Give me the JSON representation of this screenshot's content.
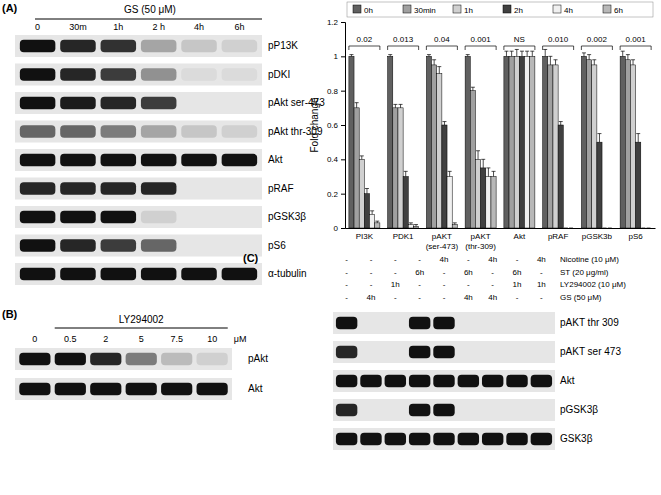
{
  "panel_a": {
    "label": "(A)",
    "treatment": "GS (50 μM)",
    "lanes": [
      "0",
      "30m",
      "1h",
      "2 h",
      "4h",
      "6h"
    ],
    "rows": [
      {
        "name": "pP13K",
        "bands": [
          1,
          0.9,
          0.85,
          0.3,
          0.15,
          0.1
        ]
      },
      {
        "name": "pDKI",
        "bands": [
          1,
          0.9,
          0.8,
          0.4,
          0.05,
          0.05
        ]
      },
      {
        "name": "pAkt ser-473",
        "bands": [
          1,
          0.95,
          0.9,
          0.8,
          0,
          0
        ]
      },
      {
        "name": "pAkt thr-309",
        "bands": [
          0.6,
          0.6,
          0.5,
          0.3,
          0.15,
          0.1
        ]
      },
      {
        "name": "Akt",
        "bands": [
          1,
          1,
          1,
          1,
          1,
          1
        ]
      },
      {
        "name": "pRAF",
        "bands": [
          0.9,
          0.9,
          0.9,
          0.9,
          0,
          0
        ]
      },
      {
        "name": "pGSK3β",
        "bands": [
          1,
          1,
          1,
          0.1,
          0,
          0
        ]
      },
      {
        "name": "pS6",
        "bands": [
          1,
          0.9,
          0.8,
          0.6,
          0,
          0
        ]
      },
      {
        "name": "α-tubulin",
        "bands": [
          1,
          1,
          1,
          1,
          1,
          1
        ]
      }
    ]
  },
  "chart_data": {
    "type": "bar",
    "y_label": "Fold change",
    "categories": [
      "PI3K",
      "PDK1",
      "pAKT (ser-473)",
      "pAKT (thr-309)",
      "Akt",
      "pRAF",
      "pGSK3b",
      "pS6"
    ],
    "series": [
      {
        "name": "0h",
        "color": "#606060",
        "values": [
          1,
          1,
          1,
          1,
          1,
          1,
          1,
          1
        ],
        "errors": [
          0.01,
          0.01,
          0.01,
          0.01,
          0.03,
          0.04,
          0.02,
          0.03
        ]
      },
      {
        "name": "30min",
        "color": "#a0a0a0",
        "values": [
          0.7,
          0.7,
          0.95,
          0.8,
          1,
          0.95,
          0.98,
          0.98
        ],
        "errors": [
          0.03,
          0.02,
          0.03,
          0.02,
          0.03,
          0.05,
          0.03,
          0.03
        ]
      },
      {
        "name": "1h",
        "color": "#d0d0d0",
        "values": [
          0.4,
          0.7,
          0.9,
          0.4,
          1,
          0.95,
          0.95,
          0.95
        ],
        "errors": [
          0.02,
          0.02,
          0.04,
          0.05,
          0.04,
          0.03,
          0.03,
          0.03
        ]
      },
      {
        "name": "2h",
        "color": "#404040",
        "values": [
          0.2,
          0.3,
          0.6,
          0.35,
          1,
          0.6,
          0.5,
          0.5
        ],
        "errors": [
          0.03,
          0.03,
          0.02,
          0.05,
          0.03,
          0.02,
          0.05,
          0.05
        ]
      },
      {
        "name": "4h",
        "color": "#f0f0f0",
        "values": [
          0.08,
          0.02,
          0.3,
          0.3,
          1,
          0,
          0,
          0
        ],
        "errors": [
          0.02,
          0.01,
          0.03,
          0.05,
          0.03,
          0,
          0,
          0
        ]
      },
      {
        "name": "6h",
        "color": "#b8b8b8",
        "values": [
          0.03,
          0.01,
          0.02,
          0.3,
          1,
          0,
          0,
          0
        ],
        "errors": [
          0.01,
          0.01,
          0.01,
          0.03,
          0.03,
          0,
          0,
          0
        ]
      }
    ],
    "annotations": [
      "0.02",
      "0.013",
      "0.04",
      "0.001",
      "NS",
      "0.010",
      "0.002",
      "0.001"
    ],
    "ylim": [
      0,
      1.2
    ],
    "yticks": [
      0,
      0.2,
      0.4,
      0.6,
      0.8,
      1,
      1.2
    ],
    "legend": "top"
  },
  "panel_b": {
    "label": "(B)",
    "treatment": "LY294002",
    "lanes": [
      "0",
      "0.5",
      "2",
      "5",
      "7.5",
      "10"
    ],
    "unit": "μM",
    "rows": [
      {
        "name": "pAkt",
        "bands": [
          1,
          1,
          0.9,
          0.5,
          0.2,
          0.1
        ]
      },
      {
        "name": "Akt",
        "bands": [
          1,
          1,
          1,
          1,
          1,
          1
        ]
      }
    ]
  },
  "panel_c": {
    "label": "(C)",
    "treatments": [
      {
        "name": "Nicotine (10 μM)",
        "lanes": [
          "-",
          "-",
          "-",
          "-",
          "4h",
          "-",
          "4h",
          "-",
          "4h"
        ]
      },
      {
        "name": "ST (20 μg/ml)",
        "lanes": [
          "-",
          "-",
          "-",
          "6h",
          "-",
          "6h",
          "-",
          "6h",
          "-"
        ]
      },
      {
        "name": "LY294002 (10 μM)",
        "lanes": [
          "-",
          "-",
          "1h",
          "-",
          "-",
          "-",
          "-",
          "1h",
          "1h"
        ]
      },
      {
        "name": "GS (50 μM)",
        "lanes": [
          "-",
          "4h",
          "-",
          "-",
          "-",
          "4h",
          "4h",
          "-",
          "-"
        ]
      }
    ],
    "rows": [
      {
        "name": "pAKT thr 309",
        "bands": [
          1,
          0,
          0,
          1,
          1,
          0,
          0,
          0,
          0
        ]
      },
      {
        "name": "pAKT ser 473",
        "bands": [
          0.9,
          0,
          0,
          1,
          1,
          0,
          0,
          0,
          0
        ]
      },
      {
        "name": "Akt",
        "bands": [
          1,
          1,
          1,
          1,
          1,
          1,
          1,
          1,
          1
        ]
      },
      {
        "name": "pGSK3β",
        "bands": [
          0.9,
          0,
          0,
          1,
          1,
          0,
          0,
          0,
          0
        ]
      },
      {
        "name": "GSK3β",
        "bands": [
          1,
          1,
          1,
          1,
          1,
          1,
          1,
          1,
          1
        ]
      }
    ]
  }
}
